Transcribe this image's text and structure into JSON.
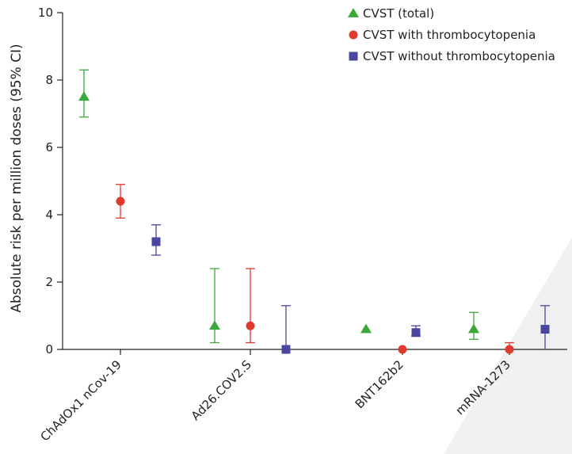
{
  "chart_data": {
    "type": "scatter",
    "title": "",
    "xlabel": "",
    "ylabel": "Absolute risk per million doses (95% CI)",
    "ylim": [
      0,
      10
    ],
    "yticks": [
      0,
      2,
      4,
      6,
      8,
      10
    ],
    "grid": false,
    "legend_position": "top-right",
    "categories": [
      "ChAdOx1 nCov-19",
      "Ad26.COV2.S",
      "BNT162b2",
      "mRNA-1273"
    ],
    "series": [
      {
        "name": "CVST (total)",
        "marker": "triangle",
        "color": "#3aa83a",
        "values": [
          7.5,
          0.7,
          0.6,
          0.6
        ],
        "lower": [
          6.9,
          0.2,
          null,
          0.3
        ],
        "upper": [
          8.3,
          2.4,
          null,
          1.1
        ]
      },
      {
        "name": "CVST with thrombocytopenia",
        "marker": "circle",
        "color": "#e03a2f",
        "values": [
          4.4,
          0.7,
          0.0,
          0.0
        ],
        "lower": [
          3.9,
          0.2,
          null,
          0.0
        ],
        "upper": [
          4.9,
          2.4,
          null,
          0.2
        ]
      },
      {
        "name": "CVST without thrombocytopenia",
        "marker": "square",
        "color": "#4a46a0",
        "values": [
          3.2,
          0.0,
          0.5,
          0.6
        ],
        "lower": [
          2.8,
          0.0,
          0.4,
          0.0
        ],
        "upper": [
          3.7,
          1.3,
          0.7,
          1.3
        ]
      }
    ]
  }
}
